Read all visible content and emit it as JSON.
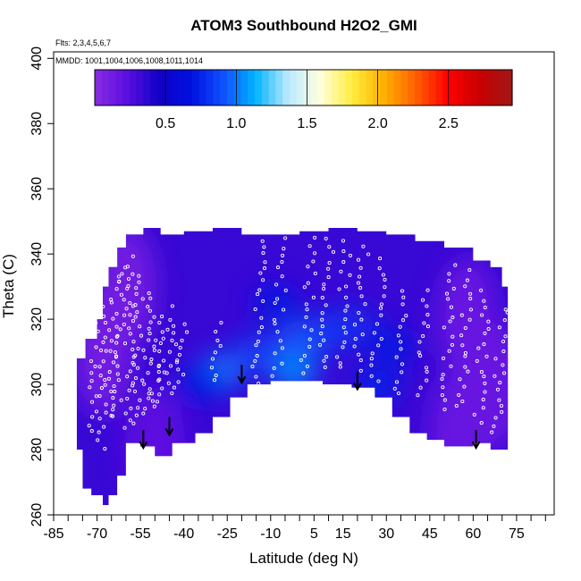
{
  "chart_data": {
    "type": "heatmap",
    "title": "ATOM3 Southbound H2O2_GMI",
    "xlabel": "Latitude (deg N)",
    "ylabel": "Theta (C)",
    "xlim": [
      -85,
      88
    ],
    "ylim": [
      260,
      402
    ],
    "x_ticks": [
      -85,
      -70,
      -55,
      -40,
      -25,
      -10,
      5,
      15,
      30,
      45,
      60,
      75
    ],
    "y_ticks": [
      260,
      280,
      300,
      320,
      340,
      360,
      380,
      400
    ],
    "flights_note": "Flts: 2,3,4,5,6,7",
    "dates_note": "MMDD: 1001,1004,1006,1008,1011,1014",
    "colorbar": {
      "range": [
        0,
        2.95
      ],
      "ticks": [
        0.5,
        1.0,
        1.5,
        2.0,
        2.5
      ],
      "tick_labels": [
        "0.5",
        "1.0",
        "1.5",
        "2.0",
        "2.5"
      ],
      "colors": [
        "#8a2be2",
        "#5a0fe0",
        "#1000c8",
        "#0010e0",
        "#1050ff",
        "#00b4ff",
        "#b8e8ff",
        "#ffffe0",
        "#ffee40",
        "#ffb000",
        "#ff6000",
        "#ff0000",
        "#c80000",
        "#a01818"
      ]
    },
    "coverage_top": [
      [
        -77,
        308
      ],
      [
        -74,
        314
      ],
      [
        -70,
        320
      ],
      [
        -68,
        330
      ],
      [
        -66,
        336
      ],
      [
        -63,
        342
      ],
      [
        -60,
        346
      ],
      [
        -54,
        348
      ],
      [
        -48,
        346
      ],
      [
        -40,
        347
      ],
      [
        -30,
        348
      ],
      [
        -20,
        346
      ],
      [
        -12,
        346
      ],
      [
        0,
        347
      ],
      [
        10,
        348
      ],
      [
        20,
        347
      ],
      [
        30,
        346
      ],
      [
        40,
        344
      ],
      [
        50,
        342
      ],
      [
        60,
        338
      ],
      [
        66,
        336
      ],
      [
        70,
        330
      ],
      [
        72,
        322
      ]
    ],
    "coverage_bottom": [
      [
        72,
        276
      ],
      [
        66,
        280
      ],
      [
        60,
        282
      ],
      [
        50,
        281
      ],
      [
        44,
        283
      ],
      [
        38,
        285
      ],
      [
        32,
        290
      ],
      [
        26,
        296
      ],
      [
        18,
        299
      ],
      [
        8,
        300
      ],
      [
        0,
        301
      ],
      [
        -10,
        301
      ],
      [
        -18,
        300
      ],
      [
        -24,
        296
      ],
      [
        -30,
        290
      ],
      [
        -36,
        285
      ],
      [
        -44,
        282
      ],
      [
        -50,
        278
      ],
      [
        -55,
        281
      ],
      [
        -60,
        282
      ],
      [
        -63,
        272
      ],
      [
        -66,
        266
      ],
      [
        -68,
        263
      ],
      [
        -72,
        266
      ],
      [
        -75,
        268
      ],
      [
        -77,
        280
      ]
    ],
    "enhanced_regions": [
      {
        "lat": -27,
        "theta": 304,
        "value": 1.0
      },
      {
        "lat": -14,
        "theta": 310,
        "value": 0.85
      },
      {
        "lat": -2,
        "theta": 304,
        "value": 1.05
      },
      {
        "lat": 1,
        "theta": 314,
        "value": 0.95
      },
      {
        "lat": 10,
        "theta": 316,
        "value": 0.85
      },
      {
        "lat": 18,
        "theta": 318,
        "value": 0.8
      },
      {
        "lat": 27,
        "theta": 300,
        "value": 0.75
      },
      {
        "lat": -8,
        "theta": 325,
        "value": 0.7
      },
      {
        "lat": 32,
        "theta": 312,
        "value": 0.7
      },
      {
        "lat": -35,
        "theta": 300,
        "value": 0.7
      }
    ],
    "low_regions": [
      {
        "lat": -68,
        "theta": 310,
        "value": 0.1
      },
      {
        "lat": -60,
        "theta": 330,
        "value": 0.1
      },
      {
        "lat": 58,
        "theta": 320,
        "value": 0.15
      },
      {
        "lat": 68,
        "theta": 300,
        "value": 0.15
      },
      {
        "lat": 55,
        "theta": 285,
        "value": 0.15
      },
      {
        "lat": -50,
        "theta": 280,
        "value": 0.2
      }
    ],
    "arrows": [
      {
        "lat": -54,
        "theta": 286
      },
      {
        "lat": -45,
        "theta": 290
      },
      {
        "lat": -20,
        "theta": 306
      },
      {
        "lat": 20,
        "theta": 304
      },
      {
        "lat": 61,
        "theta": 286
      }
    ]
  }
}
